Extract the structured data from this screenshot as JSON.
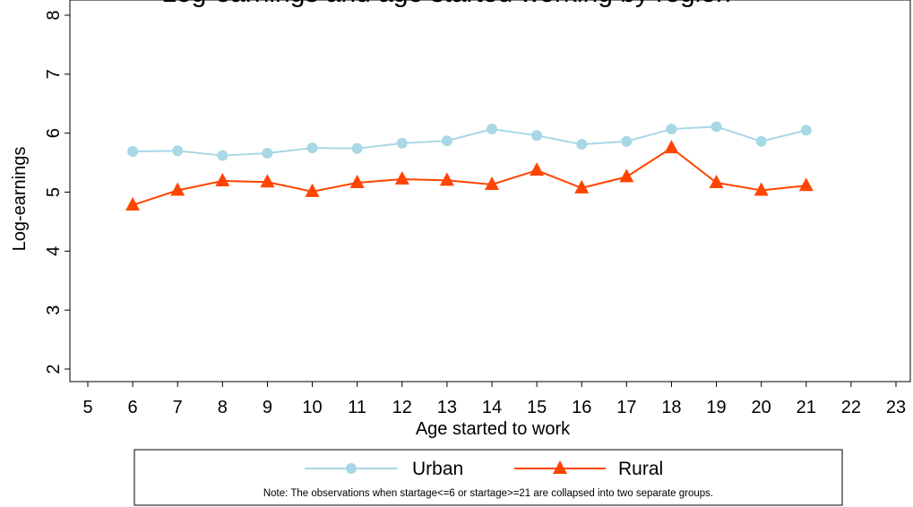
{
  "chart_data": {
    "type": "line",
    "title": "Log-earnings and age started working by region",
    "xlabel": "Age started to work",
    "ylabel": "Log-earnings",
    "xlim": [
      5,
      23
    ],
    "ylim": [
      1.85,
      8.15
    ],
    "xticks": [
      5,
      6,
      7,
      8,
      9,
      10,
      11,
      12,
      13,
      14,
      15,
      16,
      17,
      18,
      19,
      20,
      21,
      22,
      23
    ],
    "yticks": [
      2,
      3,
      4,
      5,
      6,
      7,
      8
    ],
    "grid": false,
    "legend_position": "bottom",
    "note": "Note: The observations when startage<=6 or startage>=21 are collapsed  into two separate groups.",
    "x": [
      6,
      7,
      8,
      9,
      10,
      11,
      12,
      13,
      14,
      15,
      16,
      17,
      18,
      19,
      20,
      21
    ],
    "series": [
      {
        "name": "Urban",
        "color": "#a8d8e6",
        "marker": "circle",
        "values": [
          5.69,
          5.7,
          5.62,
          5.66,
          5.75,
          5.74,
          5.83,
          5.87,
          6.07,
          5.96,
          5.81,
          5.86,
          6.07,
          6.11,
          5.86,
          6.05
        ]
      },
      {
        "name": "Rural",
        "color": "#ff4500",
        "marker": "triangle",
        "values": [
          4.78,
          5.03,
          5.19,
          5.17,
          5.01,
          5.16,
          5.22,
          5.2,
          5.13,
          5.37,
          5.07,
          5.26,
          5.75,
          5.16,
          5.03,
          5.11
        ]
      }
    ]
  }
}
